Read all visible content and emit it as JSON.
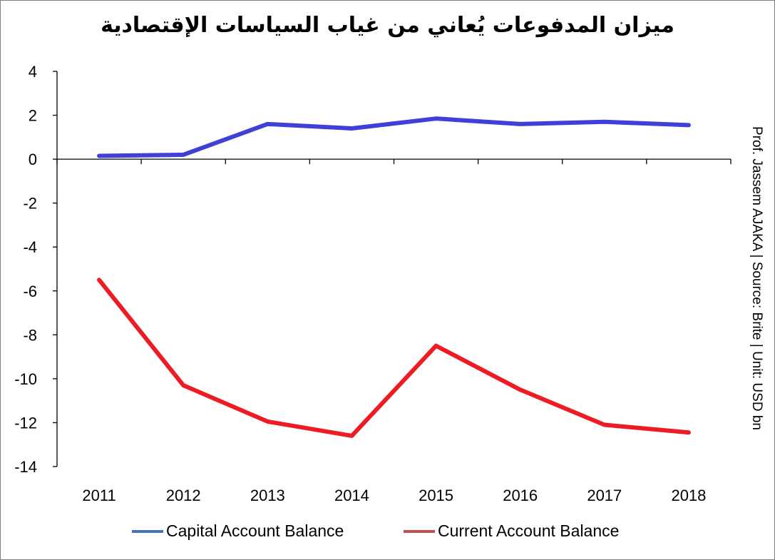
{
  "chart_data": {
    "type": "line",
    "title": "ميزان المدفوعات يُعاني من غياب السياسات الإقتصادية",
    "categories": [
      "2011",
      "2012",
      "2013",
      "2014",
      "2015",
      "2016",
      "2017",
      "2018"
    ],
    "ylim": [
      -14,
      4
    ],
    "yticks": [
      "4",
      "2",
      "0",
      "-2",
      "-4",
      "-6",
      "-8",
      "-10",
      "-12",
      "-14"
    ],
    "grid": false,
    "legend_position": "bottom",
    "series": [
      {
        "name": "Capital Account Balance",
        "color": "#4040d8",
        "legend_color": "#4472c4",
        "values": [
          0.15,
          0.2,
          1.6,
          1.4,
          1.85,
          1.6,
          1.7,
          1.55
        ]
      },
      {
        "name": "Current Account Balance",
        "color": "#ed1c24",
        "legend_color": "#c0504d",
        "values": [
          -5.5,
          -10.3,
          -11.95,
          -12.6,
          -8.5,
          -10.5,
          -12.1,
          -12.45
        ]
      }
    ],
    "side_note": "Prof. Jassem AJAKA | Source: Brite | Unit: USD bn"
  }
}
